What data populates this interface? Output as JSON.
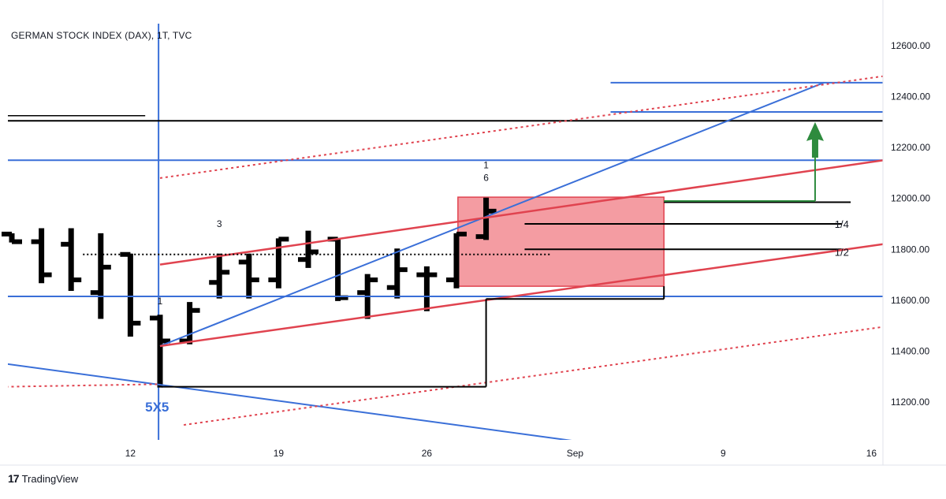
{
  "chart_data": {
    "type": "bar",
    "style": "ohlc",
    "title": "GERMAN STOCK INDEX (DAX), 1T, TVC",
    "brand": "TradingView",
    "brand_logo": "17",
    "y_ticks": [
      "12600.00",
      "12400.00",
      "12200.00",
      "12000.00",
      "11800.00",
      "11600.00",
      "11400.00",
      "11200.00"
    ],
    "y_range": [
      11040,
      12710
    ],
    "x_ticks": [
      {
        "label": "12",
        "slot": 4
      },
      {
        "label": "19",
        "slot": 9
      },
      {
        "label": "26",
        "slot": 14
      },
      {
        "label": "Sep",
        "slot": 19
      },
      {
        "label": "9",
        "slot": 24
      },
      {
        "label": "16",
        "slot": 29
      }
    ],
    "bars": [
      {
        "slot": 0,
        "o": 11860,
        "h": 11860,
        "l": 11830,
        "c": 11830
      },
      {
        "slot": 1,
        "o": 11830,
        "h": 11880,
        "l": 11670,
        "c": 11700
      },
      {
        "slot": 2,
        "o": 11820,
        "h": 11880,
        "l": 11640,
        "c": 11680
      },
      {
        "slot": 3,
        "o": 11630,
        "h": 11860,
        "l": 11530,
        "c": 11730
      },
      {
        "slot": 4,
        "o": 11780,
        "h": 11780,
        "l": 11460,
        "c": 11510
      },
      {
        "slot": 5,
        "o": 11530,
        "h": 11540,
        "l": 11260,
        "c": 11440
      },
      {
        "slot": 6,
        "o": 11440,
        "h": 11590,
        "l": 11430,
        "c": 11560
      },
      {
        "slot": 7,
        "o": 11670,
        "h": 11780,
        "l": 11610,
        "c": 11710
      },
      {
        "slot": 8,
        "o": 11750,
        "h": 11780,
        "l": 11610,
        "c": 11680
      },
      {
        "slot": 9,
        "o": 11680,
        "h": 11840,
        "l": 11650,
        "c": 11840
      },
      {
        "slot": 10,
        "o": 11760,
        "h": 11870,
        "l": 11730,
        "c": 11790
      },
      {
        "slot": 11,
        "o": 11840,
        "h": 11840,
        "l": 11600,
        "c": 11610
      },
      {
        "slot": 12,
        "o": 11630,
        "h": 11700,
        "l": 11530,
        "c": 11680
      },
      {
        "slot": 13,
        "o": 11650,
        "h": 11800,
        "l": 11610,
        "c": 11720
      },
      {
        "slot": 14,
        "o": 11700,
        "h": 11730,
        "l": 11560,
        "c": 11700
      },
      {
        "slot": 15,
        "o": 11680,
        "h": 11860,
        "l": 11650,
        "c": 11860
      },
      {
        "slot": 16,
        "o": 11850,
        "h": 12000,
        "l": 11840,
        "c": 11950
      }
    ],
    "slot_geometry": {
      "first_x": 15,
      "spacing": 37.6
    },
    "annotations": [
      {
        "text": "5X5",
        "color": "#3a6fd8",
        "bold": true,
        "slot": 4.9,
        "price": 11250,
        "dy": 28,
        "size": 17
      },
      {
        "text": "1",
        "color": "#131722",
        "slot": 5.0,
        "price": 11540,
        "dy": -14,
        "size": 12
      },
      {
        "text": "3",
        "color": "#131722",
        "slot": 7.0,
        "price": 11850,
        "dy": -12,
        "size": 12
      },
      {
        "text": "1",
        "color": "#131722",
        "slot": 16.0,
        "price": 12000,
        "dy": -38,
        "size": 12
      },
      {
        "text": "6",
        "color": "#131722",
        "slot": 16.0,
        "price": 12000,
        "dy": -22,
        "size": 12
      },
      {
        "text": "1/4",
        "color": "#131722",
        "slot": 28.0,
        "price": 11900,
        "dy": 5,
        "size": 13
      },
      {
        "text": "1/2",
        "color": "#131722",
        "slot": 28.0,
        "price": 11790,
        "dy": 5,
        "size": 13
      }
    ],
    "drawings": {
      "colors": {
        "blue": "#3a6fd8",
        "red": "#e0434f",
        "black": "#000000",
        "green": "#2e8b3e",
        "box_fill": "#f28b92"
      },
      "target_box": {
        "x1": 15.05,
        "x2": 22.0,
        "top": 12005,
        "bottom": 11655
      },
      "horizontal_lines": [
        {
          "x1": -0.2,
          "x2": 30.6,
          "price": 12305,
          "color": "black",
          "width": 2
        },
        {
          "x1": -0.2,
          "x2": 4.5,
          "price": 12325,
          "color": "black",
          "width": 1.5
        },
        {
          "x1": -0.2,
          "x2": 30.6,
          "price": 12150,
          "color": "blue",
          "width": 2
        },
        {
          "x1": -0.2,
          "x2": 30.6,
          "price": 11615,
          "color": "blue",
          "width": 2
        },
        {
          "x1": 20.2,
          "x2": 30.6,
          "price": 12455,
          "color": "blue",
          "width": 2
        },
        {
          "x1": 20.2,
          "x2": 30.6,
          "price": 12340,
          "color": "blue",
          "width": 2
        },
        {
          "x1": 22.0,
          "x2": 28.3,
          "price": 11985,
          "color": "black",
          "width": 2
        },
        {
          "x1": 17.3,
          "x2": 28.0,
          "price": 11900,
          "color": "black",
          "width": 2
        },
        {
          "x1": 17.3,
          "x2": 28.0,
          "price": 11800,
          "color": "black",
          "width": 2
        }
      ],
      "vertical_lines": [
        {
          "slot": 4.95,
          "p1": 12710,
          "p2": 11040,
          "color": "blue",
          "width": 2
        }
      ],
      "segments": [
        {
          "x1": 5.0,
          "p1": 11420,
          "x2": 27.4,
          "p2": 12455,
          "color": "blue",
          "width": 2
        },
        {
          "x1": -0.2,
          "p1": 11350,
          "x2": 19.1,
          "p2": 11045,
          "color": "blue",
          "width": 2
        },
        {
          "x1": 5.0,
          "p1": 11740,
          "x2": 30.6,
          "p2": 12170,
          "color": "red",
          "width": 2.5
        },
        {
          "x1": 5.0,
          "p1": 11420,
          "x2": 30.6,
          "p2": 11840,
          "color": "red",
          "width": 2.5
        },
        {
          "x1": 5.0,
          "p1": 12080,
          "x2": 30.6,
          "p2": 12500,
          "color": "red",
          "width": 2,
          "dash": "3,4"
        },
        {
          "x1": 5.8,
          "p1": 11110,
          "x2": 30.6,
          "p2": 11515,
          "color": "red",
          "width": 2,
          "dash": "3,4"
        },
        {
          "x1": -0.2,
          "p1": 11260,
          "x2": 4.9,
          "p2": 11270,
          "color": "red",
          "width": 2,
          "dash": "3,4"
        },
        {
          "x1": 2.4,
          "p1": 11780,
          "x2": 18.2,
          "p2": 11780,
          "color": "black",
          "width": 2,
          "dash": "2,3"
        },
        {
          "x1": 5.05,
          "p1": 11260,
          "x2": 16.0,
          "p2": 11260,
          "color": "black",
          "width": 2
        },
        {
          "x1": 16.0,
          "p1": 11260,
          "x2": 16.0,
          "p2": 11605,
          "color": "black",
          "width": 2
        },
        {
          "x1": 16.0,
          "p1": 11605,
          "x2": 22.0,
          "p2": 11605,
          "color": "black",
          "width": 2
        },
        {
          "x1": 22.0,
          "p1": 11605,
          "x2": 22.0,
          "p2": 11655,
          "color": "black",
          "width": 2
        },
        {
          "x1": 22.0,
          "p1": 11990,
          "x2": 27.1,
          "p2": 11990,
          "color": "green",
          "width": 2
        },
        {
          "x1": 27.1,
          "p1": 11990,
          "x2": 27.1,
          "p2": 12160,
          "color": "green",
          "width": 2
        }
      ],
      "arrow": {
        "slot": 27.1,
        "base": 12160,
        "tip": 12300,
        "color": "green"
      }
    }
  }
}
